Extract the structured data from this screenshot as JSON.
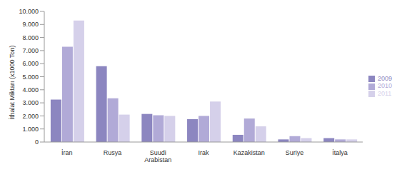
{
  "chart_data": {
    "type": "bar",
    "y_label": "İthalat Miktarı (x1000 Ton)",
    "categories": [
      "İran",
      "Rusya",
      "Suudi Arabistan",
      "Irak",
      "Kazakistan",
      "Suriye",
      "İtalya"
    ],
    "series": [
      {
        "name": "2009",
        "color": "#8c86c0",
        "values": [
          3250,
          5800,
          2150,
          1750,
          550,
          200,
          300
        ]
      },
      {
        "name": "2010",
        "color": "#b1aad7",
        "values": [
          7300,
          3350,
          2050,
          2000,
          1800,
          450,
          200
        ]
      },
      {
        "name": "2011",
        "color": "#d5d0ea",
        "values": [
          9300,
          2100,
          2000,
          3100,
          1200,
          300,
          200
        ]
      }
    ],
    "ylim": [
      0,
      10000
    ],
    "yticks": [
      0,
      {
        "value": 1000,
        "label": "1.000"
      },
      {
        "value": 2000,
        "label": "2.000"
      },
      {
        "value": 3000,
        "label": "3.000"
      },
      {
        "value": 4000,
        "label": "4.000"
      },
      {
        "value": 5000,
        "label": "5.000"
      },
      {
        "value": 6000,
        "label": "6.000"
      },
      {
        "value": 7000,
        "label": "7.000"
      },
      {
        "value": 8000,
        "label": "8.000"
      },
      {
        "value": 9000,
        "label": "9.000"
      },
      {
        "value": 10000,
        "label": "10.000"
      }
    ],
    "grid": false,
    "legend": "right"
  }
}
